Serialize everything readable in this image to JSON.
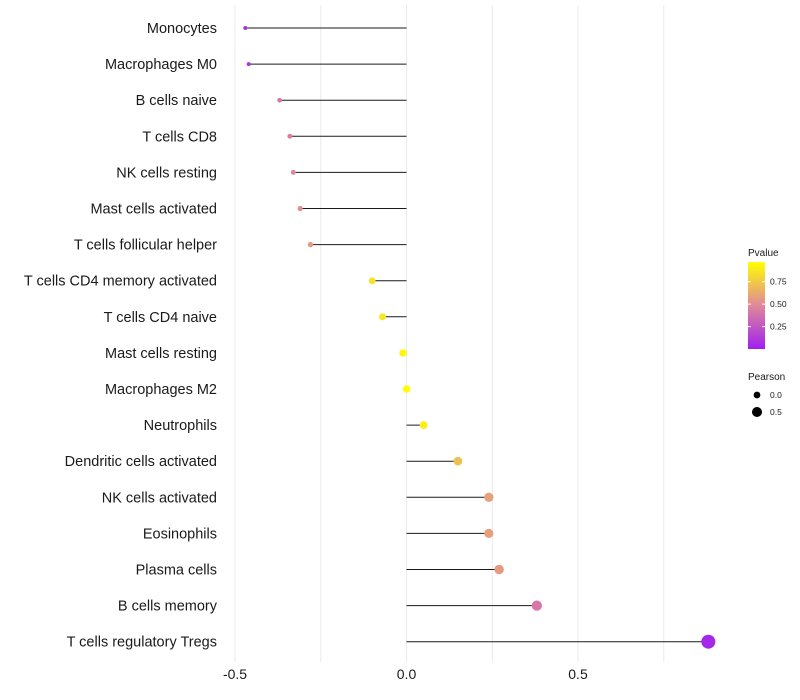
{
  "chart_data": {
    "type": "lollipop",
    "title": "",
    "xlabel": "",
    "ylabel": "",
    "xlim": [
      -0.5,
      0.87
    ],
    "x_ticks": [
      {
        "value": -0.5,
        "label": "-0.5"
      },
      {
        "value": 0.0,
        "label": "0.0"
      },
      {
        "value": 0.5,
        "label": "0.5"
      }
    ],
    "categories": [
      "Monocytes",
      "Macrophages M0",
      "B cells naive",
      "T cells CD8",
      "NK cells resting",
      "Mast cells activated",
      "T cells follicular helper",
      "T cells CD4 memory activated",
      "T cells CD4 naive",
      "Mast cells resting",
      "Macrophages M2",
      "Neutrophils",
      "Dendritic cells activated",
      "NK cells activated",
      "Eosinophils",
      "Plasma cells",
      "B cells memory",
      "T cells regulatory  Tregs"
    ],
    "series": [
      {
        "name": "Pearson",
        "values": [
          -0.47,
          -0.46,
          -0.37,
          -0.34,
          -0.33,
          -0.31,
          -0.28,
          -0.1,
          -0.07,
          -0.01,
          0.0,
          0.05,
          0.15,
          0.24,
          0.24,
          0.27,
          0.38,
          0.88
        ],
        "pvalues": [
          0.08,
          0.1,
          0.42,
          0.45,
          0.5,
          0.52,
          0.58,
          0.88,
          0.9,
          0.97,
          1.0,
          0.93,
          0.73,
          0.6,
          0.6,
          0.58,
          0.42,
          0.04
        ]
      }
    ],
    "color_scale": {
      "title": "Pvalue",
      "low_color": "#a020f0",
      "mid_color": "#e0889a",
      "high_color": "#ffff00",
      "ticks": [
        {
          "value": 0.25,
          "label": "0.25"
        },
        {
          "value": 0.5,
          "label": "0.50"
        },
        {
          "value": 0.75,
          "label": "0.75"
        }
      ]
    },
    "size_scale": {
      "title": "Pearson",
      "ticks": [
        {
          "value": 0.0,
          "label": "0.0"
        },
        {
          "value": 0.5,
          "label": "0.5"
        }
      ]
    },
    "colors": {
      "grid": "#ebebeb",
      "stem": "#1a1a1a",
      "text": "#1a1a1a"
    }
  }
}
